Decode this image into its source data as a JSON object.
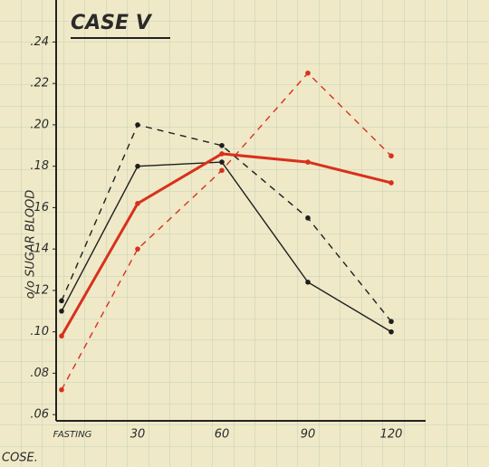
{
  "chart_data": {
    "type": "line",
    "title": "CASE V",
    "y_label": "o/o SUGAR BLOOD",
    "annotation": "COSE.",
    "categories": [
      "FASTING",
      "30",
      "60",
      "90",
      "120"
    ],
    "series": [
      {
        "color": "#1e1e1e",
        "dashed": false,
        "values": [
          0.11,
          0.18,
          0.182,
          0.124,
          0.1
        ]
      },
      {
        "color": "#1e1e1e",
        "dashed": true,
        "values": [
          0.115,
          0.2,
          0.19,
          0.155,
          0.105
        ]
      },
      {
        "color": "#d8301c",
        "dashed": false,
        "values": [
          0.098,
          0.162,
          0.186,
          0.182,
          0.172
        ]
      },
      {
        "color": "#d8301c",
        "dashed": true,
        "values": [
          0.072,
          0.14,
          0.178,
          0.225,
          0.185
        ]
      }
    ],
    "ylim": [
      0.057,
      0.245
    ],
    "yticks": [
      {
        "value": 0.06,
        "label": ".06"
      },
      {
        "value": 0.08,
        "label": ".08"
      },
      {
        "value": 0.1,
        "label": ".10"
      },
      {
        "value": 0.12,
        "label": ".12"
      },
      {
        "value": 0.14,
        "label": ".14"
      },
      {
        "value": 0.16,
        "label": ".16"
      },
      {
        "value": 0.18,
        "label": ".18"
      },
      {
        "value": 0.2,
        "label": ".20"
      },
      {
        "value": 0.22,
        "label": ".22"
      },
      {
        "value": 0.24,
        "label": ".24"
      }
    ]
  }
}
